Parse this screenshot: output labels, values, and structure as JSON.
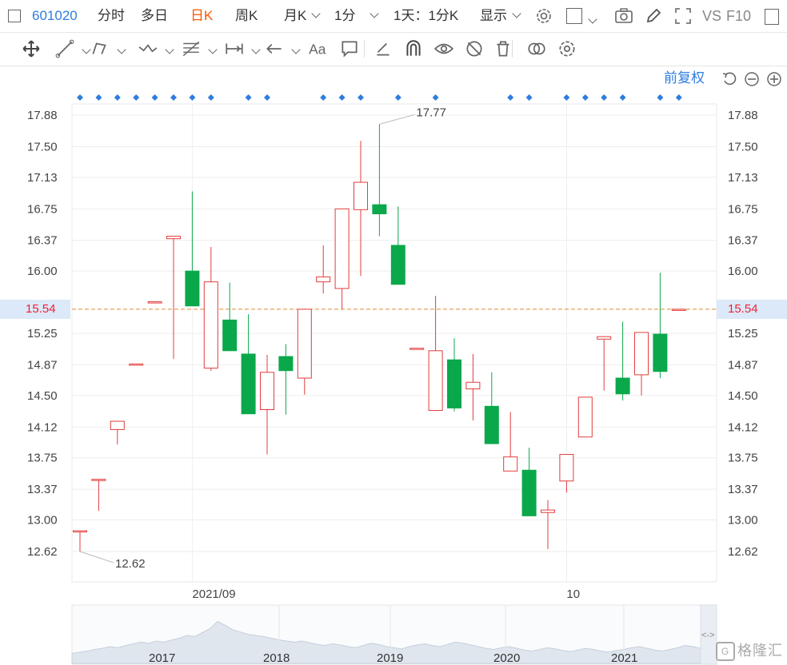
{
  "toolbar": {
    "stock_code": "601020",
    "periods": [
      {
        "label": "分时",
        "active": false
      },
      {
        "label": "多日",
        "active": false
      },
      {
        "label": "日K",
        "active": true
      },
      {
        "label": "周K",
        "active": false
      },
      {
        "label": "月K",
        "active": false
      },
      {
        "label": "1分",
        "active": false
      }
    ],
    "interval_label": "1天：1分K",
    "display_label": "显示",
    "vs_label": "VS",
    "f10_label": "F10"
  },
  "drawing_tools": [
    "move-icon",
    "line-icon",
    "polyline-icon",
    "wave-icon",
    "fib-icon",
    "measure-icon",
    "arrow-icon",
    "text-icon",
    "comment-icon",
    "pen-icon",
    "magnet-icon",
    "eye-icon",
    "hide-icon",
    "trash-icon",
    "link-icon",
    "settings-icon"
  ],
  "adjust_label": "前复权",
  "colors": {
    "up": "#e23d3d",
    "down": "#0aa84a",
    "accent": "#2e7dde",
    "price_line": "#e08a2e"
  },
  "chart_data": {
    "type": "candlestick",
    "ylim": [
      12.4,
      18.1
    ],
    "y_ticks": [
      "17.88",
      "17.50",
      "17.13",
      "16.75",
      "16.37",
      "16.00",
      "15.25",
      "14.87",
      "14.50",
      "14.12",
      "13.75",
      "13.37",
      "13.00",
      "12.62"
    ],
    "y_tick_values": [
      17.88,
      17.5,
      17.13,
      16.75,
      16.37,
      16.0,
      15.25,
      14.87,
      14.5,
      14.12,
      13.75,
      13.37,
      13.0,
      12.62
    ],
    "x_labels": [
      {
        "label": "2021/09",
        "index": 6
      },
      {
        "label": "10",
        "index": 26
      }
    ],
    "current_price": "15.54",
    "current_value": 15.54,
    "max_label": "17.77",
    "max_index": 16,
    "max_value": 17.77,
    "min_label": "12.62",
    "min_index": 0,
    "min_value": 12.62,
    "candles": [
      {
        "o": 12.87,
        "c": 12.87,
        "h": 12.87,
        "l": 12.62
      },
      {
        "o": 13.49,
        "c": 13.49,
        "h": 13.49,
        "l": 13.11
      },
      {
        "o": 14.09,
        "c": 14.19,
        "h": 14.19,
        "l": 13.91
      },
      {
        "o": 14.88,
        "c": 14.88,
        "h": 14.88,
        "l": 14.88
      },
      {
        "o": 15.63,
        "c": 15.63,
        "h": 15.63,
        "l": 15.63
      },
      {
        "o": 16.39,
        "c": 16.42,
        "h": 16.42,
        "l": 14.94
      },
      {
        "o": 16.0,
        "c": 15.58,
        "h": 16.96,
        "l": 15.58
      },
      {
        "o": 14.83,
        "c": 15.87,
        "h": 16.29,
        "l": 14.8
      },
      {
        "o": 15.41,
        "c": 15.04,
        "h": 15.86,
        "l": 15.04
      },
      {
        "o": 15.0,
        "c": 14.28,
        "h": 15.48,
        "l": 14.28
      },
      {
        "o": 14.33,
        "c": 14.78,
        "h": 14.99,
        "l": 13.79
      },
      {
        "o": 14.97,
        "c": 14.8,
        "h": 15.12,
        "l": 14.27
      },
      {
        "o": 14.71,
        "c": 15.54,
        "h": 15.54,
        "l": 14.51
      },
      {
        "o": 15.87,
        "c": 15.93,
        "h": 16.31,
        "l": 15.73
      },
      {
        "o": 15.79,
        "c": 16.75,
        "h": 16.75,
        "l": 15.54
      },
      {
        "o": 16.74,
        "c": 17.07,
        "h": 17.57,
        "l": 15.94
      },
      {
        "o": 16.8,
        "c": 16.69,
        "h": 17.77,
        "l": 16.42
      },
      {
        "o": 16.31,
        "c": 15.84,
        "h": 16.78,
        "l": 15.84
      },
      {
        "o": 15.07,
        "c": 15.07,
        "h": 15.07,
        "l": 15.07
      },
      {
        "o": 14.32,
        "c": 15.04,
        "h": 15.7,
        "l": 14.32
      },
      {
        "o": 14.93,
        "c": 14.35,
        "h": 15.19,
        "l": 14.31
      },
      {
        "o": 14.58,
        "c": 14.66,
        "h": 15.0,
        "l": 14.2
      },
      {
        "o": 14.37,
        "c": 13.92,
        "h": 14.78,
        "l": 13.92
      },
      {
        "o": 13.59,
        "c": 13.76,
        "h": 14.3,
        "l": 13.59
      },
      {
        "o": 13.6,
        "c": 13.05,
        "h": 13.87,
        "l": 13.05
      },
      {
        "o": 13.09,
        "c": 13.12,
        "h": 13.24,
        "l": 12.65
      },
      {
        "o": 13.47,
        "c": 13.79,
        "h": 13.79,
        "l": 13.33
      },
      {
        "o": 14.0,
        "c": 14.48,
        "h": 14.48,
        "l": 14.0
      },
      {
        "o": 15.18,
        "c": 15.21,
        "h": 15.21,
        "l": 14.56
      },
      {
        "o": 14.71,
        "c": 14.52,
        "h": 15.39,
        "l": 14.44
      },
      {
        "o": 14.75,
        "c": 15.26,
        "h": 15.26,
        "l": 14.5
      },
      {
        "o": 15.24,
        "c": 14.79,
        "h": 15.98,
        "l": 14.71
      },
      {
        "o": 15.54,
        "c": 15.54,
        "h": 15.54,
        "l": 15.54
      }
    ],
    "event_markers": [
      0,
      1,
      2,
      3,
      4,
      5,
      6,
      7,
      9,
      10,
      13,
      14,
      15,
      17,
      19,
      23,
      24,
      26,
      27,
      28,
      29,
      31,
      32
    ],
    "navigator": {
      "year_labels": [
        "2017",
        "2018",
        "2019",
        "2020",
        "2021"
      ],
      "series": [
        0.18,
        0.2,
        0.22,
        0.25,
        0.27,
        0.3,
        0.28,
        0.32,
        0.35,
        0.38,
        0.36,
        0.4,
        0.38,
        0.42,
        0.45,
        0.5,
        0.48,
        0.55,
        0.62,
        0.75,
        0.68,
        0.6,
        0.56,
        0.52,
        0.5,
        0.48,
        0.45,
        0.42,
        0.4,
        0.38,
        0.4,
        0.37,
        0.34,
        0.32,
        0.35,
        0.33,
        0.3,
        0.28,
        0.32,
        0.36,
        0.34,
        0.3,
        0.28,
        0.26,
        0.3,
        0.33,
        0.35,
        0.32,
        0.3,
        0.34,
        0.38,
        0.36,
        0.33,
        0.3,
        0.27,
        0.25,
        0.28,
        0.3,
        0.27,
        0.24,
        0.22,
        0.25,
        0.28,
        0.26,
        0.23,
        0.21,
        0.24,
        0.27,
        0.25,
        0.22,
        0.2,
        0.23,
        0.25,
        0.28,
        0.3,
        0.27,
        0.24,
        0.22,
        0.25,
        0.28,
        0.32,
        0.3,
        0.27
      ]
    }
  }
}
